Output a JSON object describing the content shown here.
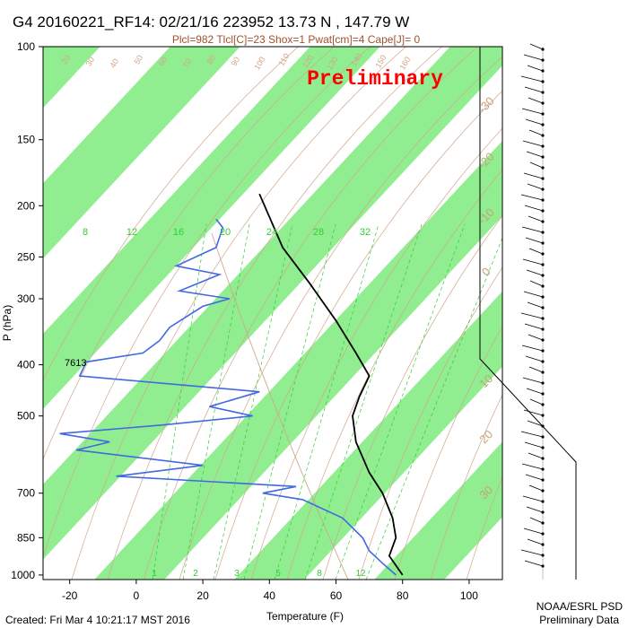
{
  "header": {
    "title": "G4 20160221_RF14: 02/21/16 223952  13.73 N , 147.79 W",
    "params": "Plcl=982 Tlcl[C]=23 Shox=1 Pwat[cm]=4 Cape[J]= 0"
  },
  "stamp": "Preliminary",
  "footer": {
    "created": "Created: Fri Mar  4 10:21:17 MST 2016",
    "org": "NOAA/ESRL PSD",
    "note": "Preliminary Data"
  },
  "colors": {
    "band": "#90ee90",
    "temperature": "#000000",
    "dewpoint": "#4169e1",
    "dry_adiabat": "#d2a68a",
    "mixing_ratio": "#33cc33",
    "stamp": "#ff0000"
  },
  "chart_data": {
    "type": "skew-t",
    "xlabel": "Temperature (F)",
    "ylabel": "P (hPa)",
    "xlim": [
      -28,
      110
    ],
    "ylim": [
      1020,
      100
    ],
    "y_scale": "log",
    "x_ticks": [
      "-20",
      "0",
      "20",
      "40",
      "60",
      "80",
      "100"
    ],
    "y_ticks": [
      "100",
      "150",
      "200",
      "250",
      "300",
      "400",
      "500",
      "700",
      "850",
      "1000"
    ],
    "isotherm_labels_C": [
      "-30",
      "-20",
      "-10",
      "0",
      "10",
      "20",
      "30"
    ],
    "mixing_ratio_labels_top": [
      "8",
      "12",
      "16",
      "20",
      "24",
      "28",
      "32"
    ],
    "mixing_ratio_labels_bottom": [
      "1",
      "2",
      "3",
      "5",
      "8",
      "12"
    ],
    "theta_labels": [
      "20",
      "30",
      "40",
      "50",
      "60",
      "70",
      "80",
      "90",
      "100",
      "110",
      "120",
      "130",
      "140",
      "150",
      "160"
    ],
    "annotation": "7613",
    "series": [
      {
        "name": "Temperature",
        "p": [
          190,
          210,
          240,
          280,
          330,
          380,
          420,
          460,
          500,
          560,
          640,
          700,
          780,
          850,
          920,
          1000
        ],
        "t_skew": [
          37,
          40,
          44,
          52,
          60,
          66,
          70,
          67,
          65,
          66,
          70,
          74,
          77,
          78,
          76,
          80
        ]
      },
      {
        "name": "Dewpoint",
        "p": [
          212,
          220,
          240,
          260,
          270,
          290,
          300,
          310,
          340,
          360,
          380,
          395,
          420,
          450,
          480,
          500,
          520,
          540,
          560,
          580,
          620,
          650,
          680,
          700,
          720,
          780,
          850,
          900,
          950,
          1000
        ],
        "t_skew": [
          24,
          26,
          24,
          12,
          25,
          13,
          28,
          20,
          10,
          7,
          2,
          -15,
          -17,
          37,
          22,
          35,
          8,
          -23,
          -8,
          -18,
          20,
          -6,
          48,
          38,
          50,
          62,
          68,
          70,
          74,
          78
        ]
      }
    ]
  }
}
